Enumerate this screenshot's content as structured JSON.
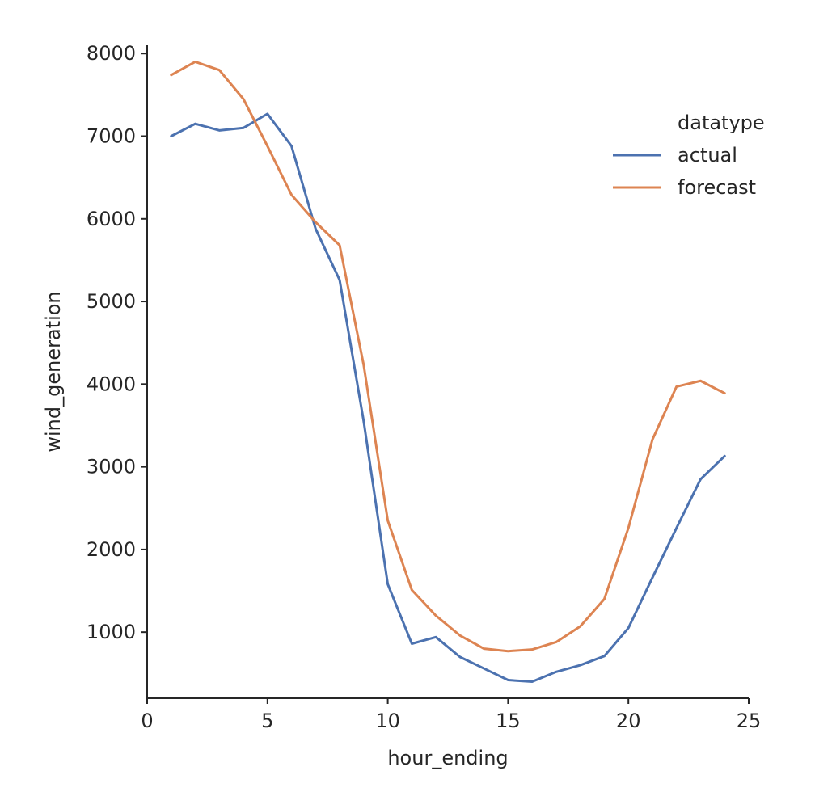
{
  "chart_data": {
    "type": "line",
    "xlabel": "hour_ending",
    "ylabel": "wind_generation",
    "xlim": [
      0,
      25
    ],
    "ylim": [
      200,
      8100
    ],
    "xticks": [
      0,
      5,
      10,
      15,
      20,
      25
    ],
    "yticks": [
      1000,
      2000,
      3000,
      4000,
      5000,
      6000,
      7000,
      8000
    ],
    "grid": false,
    "legend": {
      "title": "datatype",
      "placement": "upper-right"
    },
    "x": [
      1,
      2,
      3,
      4,
      5,
      6,
      7,
      8,
      9,
      10,
      11,
      12,
      13,
      14,
      15,
      16,
      17,
      18,
      19,
      20,
      21,
      22,
      23,
      24
    ],
    "series": [
      {
        "name": "actual",
        "color": "#4c72b0",
        "values": [
          7000,
          7150,
          7070,
          7100,
          7270,
          6880,
          5880,
          5260,
          3550,
          1580,
          860,
          940,
          700,
          560,
          420,
          400,
          520,
          600,
          710,
          1050,
          1660,
          2260,
          2850,
          3130
        ]
      },
      {
        "name": "forecast",
        "color": "#dd8452",
        "values": [
          7740,
          7900,
          7800,
          7450,
          6880,
          6290,
          5960,
          5680,
          4230,
          2350,
          1510,
          1200,
          960,
          800,
          770,
          790,
          880,
          1070,
          1400,
          2260,
          3330,
          3970,
          4040,
          3890
        ]
      }
    ]
  }
}
